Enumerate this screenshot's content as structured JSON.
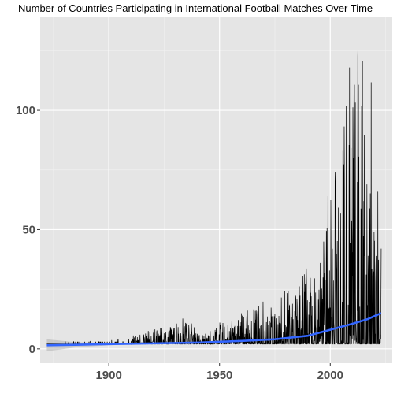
{
  "chart_data": {
    "type": "line",
    "title": "Number of Countries Participating in International Football Matches Over Time",
    "xlabel": "",
    "ylabel": "",
    "xlim": [
      1869,
      2028
    ],
    "ylim": [
      -6,
      139
    ],
    "x_ticks": [
      1900,
      1950,
      2000
    ],
    "y_ticks": [
      0,
      50,
      100
    ],
    "x_tick_labels": [
      "1900",
      "1950",
      "2000"
    ],
    "y_tick_labels": [
      "0",
      "50",
      "100"
    ],
    "grid": true,
    "background": "#e5e5e5",
    "series": [
      {
        "style": "jagged-daily-counts",
        "color": "#000000",
        "x_range": [
          1872,
          2023
        ],
        "envelope": [
          {
            "year": 1872,
            "max": 2
          },
          {
            "year": 1885,
            "max": 3
          },
          {
            "year": 1910,
            "max": 4
          },
          {
            "year": 1912,
            "max": 7
          },
          {
            "year": 1920,
            "max": 8
          },
          {
            "year": 1930,
            "max": 10
          },
          {
            "year": 1935,
            "max": 15
          },
          {
            "year": 1940,
            "max": 7
          },
          {
            "year": 1945,
            "max": 7
          },
          {
            "year": 1950,
            "max": 11
          },
          {
            "year": 1955,
            "max": 12
          },
          {
            "year": 1960,
            "max": 15
          },
          {
            "year": 1965,
            "max": 17
          },
          {
            "year": 1970,
            "max": 20
          },
          {
            "year": 1975,
            "max": 18
          },
          {
            "year": 1980,
            "max": 25
          },
          {
            "year": 1985,
            "max": 27
          },
          {
            "year": 1990,
            "max": 35
          },
          {
            "year": 1995,
            "max": 42
          },
          {
            "year": 2000,
            "max": 70
          },
          {
            "year": 2004,
            "max": 85
          },
          {
            "year": 2008,
            "max": 115
          },
          {
            "year": 2012,
            "max": 132
          },
          {
            "year": 2016,
            "max": 120
          },
          {
            "year": 2019,
            "max": 110
          },
          {
            "year": 2021,
            "max": 90
          },
          {
            "year": 2022,
            "max": 80
          },
          {
            "year": 2023,
            "max": 50
          }
        ]
      },
      {
        "style": "smooth-trend",
        "color": "#3366ff",
        "band_color": "#b3b3b3",
        "points": [
          {
            "x": 1872,
            "y": 1.5,
            "lo": -1.0,
            "hi": 4.0
          },
          {
            "x": 1885,
            "y": 1.7,
            "lo": 0.6,
            "hi": 2.8
          },
          {
            "x": 1900,
            "y": 2.0,
            "lo": 1.5,
            "hi": 2.5
          },
          {
            "x": 1920,
            "y": 2.3,
            "lo": 2.0,
            "hi": 2.6
          },
          {
            "x": 1940,
            "y": 2.6,
            "lo": 2.4,
            "hi": 2.8
          },
          {
            "x": 1960,
            "y": 3.3,
            "lo": 3.1,
            "hi": 3.5
          },
          {
            "x": 1975,
            "y": 4.0,
            "lo": 3.8,
            "hi": 4.2
          },
          {
            "x": 1990,
            "y": 5.5,
            "lo": 5.3,
            "hi": 5.7
          },
          {
            "x": 2000,
            "y": 8.0,
            "lo": 7.8,
            "hi": 8.2
          },
          {
            "x": 2010,
            "y": 10.5,
            "lo": 10.2,
            "hi": 10.8
          },
          {
            "x": 2017,
            "y": 12.5,
            "lo": 12.1,
            "hi": 12.9
          },
          {
            "x": 2023,
            "y": 15.0,
            "lo": 14.0,
            "hi": 16.0
          }
        ]
      }
    ]
  }
}
